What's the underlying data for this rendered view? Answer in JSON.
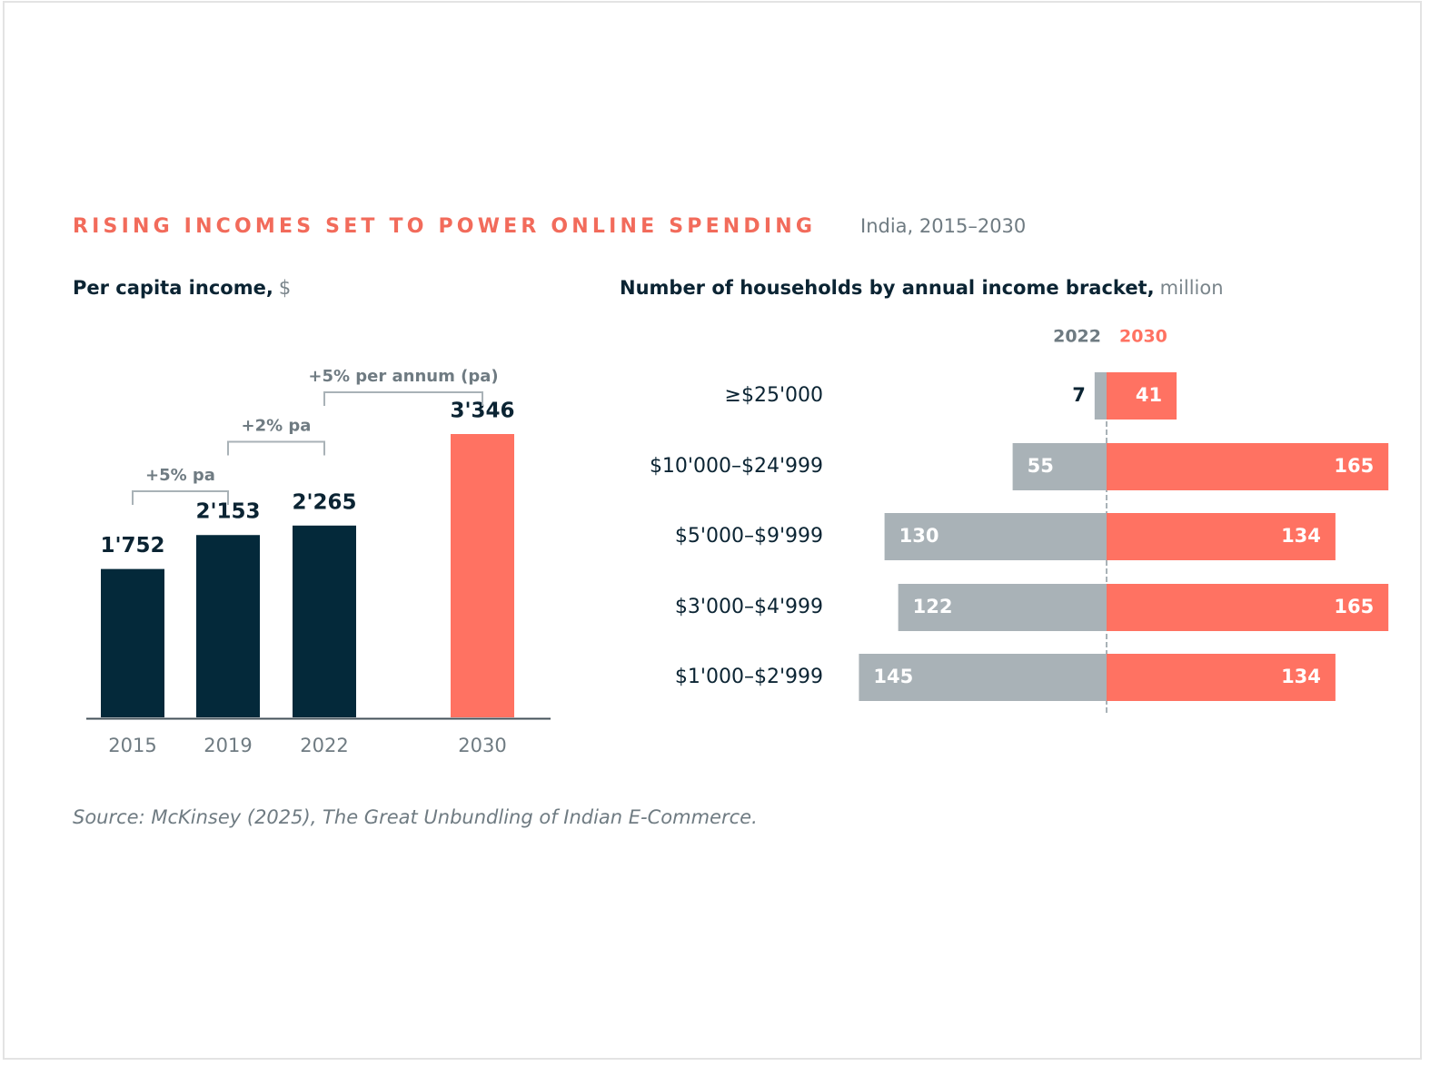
{
  "title": "RISING INCOMES SET TO POWER ONLINE SPENDING",
  "subtitle": "India, 2015–2030",
  "source": "Source: McKinsey (2025), The Great Unbundling of Indian E-Commerce.",
  "chart_data": [
    {
      "type": "bar",
      "title": "Per capita income,",
      "unit": "$",
      "categories": [
        "2015",
        "2019",
        "2022",
        "2030"
      ],
      "values": [
        1752,
        2153,
        2265,
        3346
      ],
      "value_labels": [
        "1'752",
        "2'153",
        "2'265",
        "3'346"
      ],
      "colors": [
        "#04293a",
        "#04293a",
        "#04293a",
        "#ff7262"
      ],
      "annotations": [
        "+5% pa",
        "+2% pa",
        "+5% per annum (pa)"
      ]
    },
    {
      "type": "diverging",
      "title": "Number of households by annual income bracket,",
      "unit": "million",
      "categories": [
        "≥$25'000",
        "$10'000–$24'999",
        "$5'000–$9'999",
        "$3'000–$4'999",
        "$1'000–$2'999"
      ],
      "series": [
        {
          "name": "2022",
          "color": "#a9b2b7",
          "values": [
            7,
            55,
            130,
            122,
            145
          ]
        },
        {
          "name": "2030",
          "color": "#ff7262",
          "values": [
            41,
            165,
            134,
            165,
            134
          ]
        }
      ]
    }
  ]
}
